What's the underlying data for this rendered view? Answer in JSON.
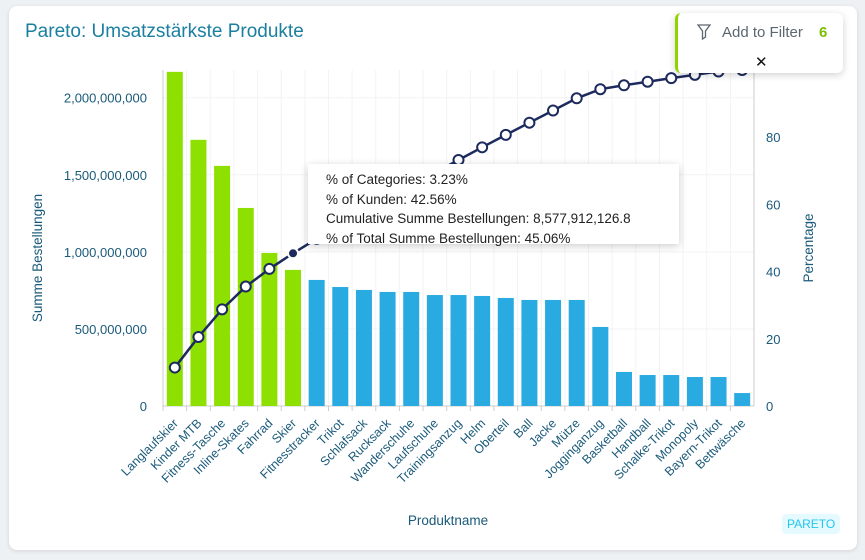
{
  "title": "Pareto: Umsatzstärkste Produkte",
  "filter": {
    "label": "Add to Filter",
    "count": "6",
    "icon": "filter-icon",
    "close": "✕"
  },
  "badge": "PARETO",
  "tooltip": {
    "lines": [
      "% of Categories: 3.23%",
      "% of Kunden: 42.56%",
      "Cumulative Summe Bestellungen: 8,577,912,126.8",
      "% of Total Summe Bestellungen: 45.06%"
    ]
  },
  "colors": {
    "selected": "#8ee000",
    "other": "#29abe2",
    "line": "#1c2a5e",
    "axis_text": "#1a5a7a"
  },
  "chart_data": {
    "type": "bar",
    "xlabel": "Produktname",
    "ylabel": "Summe Bestellungen",
    "y2label": "Percentage",
    "ylim": [
      0,
      2180000000
    ],
    "y2lim": [
      0,
      100
    ],
    "yticks": [
      "0",
      "500,000,000",
      "1,000,000,000",
      "1,500,000,000",
      "2,000,000,000"
    ],
    "y2ticks": [
      "0",
      "20",
      "40",
      "60",
      "80"
    ],
    "grid": true,
    "categories": [
      "Langlaufskier",
      "Kinder MTB",
      "Fitness-Tasche",
      "Inline-Skates",
      "Fahrrad",
      "Skier",
      "Fitnesstracker",
      "Trikot",
      "Schlafsack",
      "Rucksack",
      "Wanderschuhe",
      "Laufschuhe",
      "Trainingsanzug",
      "Helm",
      "Oberteil",
      "Ball",
      "Jacke",
      "Mütze",
      "Jogginganzug",
      "Basketball",
      "Handball",
      "Schalke-Trikot",
      "Monopoly",
      "Bayern-Trikot",
      "Bettwäsche"
    ],
    "values": [
      2168000000,
      1727000000,
      1558000000,
      1285000000,
      993000000,
      883000000,
      818000000,
      772000000,
      753000000,
      740000000,
      740000000,
      720000000,
      720000000,
      714000000,
      701000000,
      688000000,
      688000000,
      688000000,
      513000000,
      221000000,
      201000000,
      201000000,
      188000000,
      188000000,
      84000000
    ],
    "selected_count": 6,
    "line": "cumulative percentage",
    "hovered_index": 5
  }
}
